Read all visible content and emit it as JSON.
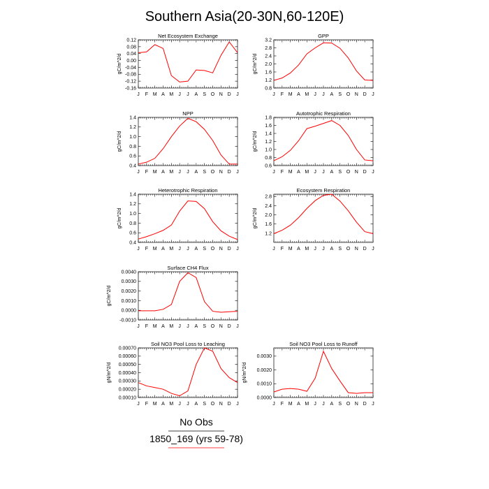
{
  "title": "Southern Asia(20-30N,60-120E)",
  "months": [
    "J",
    "F",
    "M",
    "A",
    "M",
    "J",
    "J",
    "A",
    "S",
    "O",
    "N",
    "D",
    "J"
  ],
  "legend": [
    {
      "name": "No Obs",
      "color": "#000000"
    },
    {
      "name": "1850_169 (yrs 59-78)",
      "color": "#ff0000"
    }
  ],
  "line_color": "#ff0000",
  "chart_data": [
    {
      "type": "line",
      "title": "Net Ecosystem Exchange",
      "ylabel": "gC/m^2/d",
      "ylim": [
        -0.16,
        0.12
      ],
      "yticks": [
        -0.16,
        -0.12,
        -0.08,
        -0.04,
        0.0,
        0.04,
        0.08,
        0.12
      ],
      "yticklabels": [
        "-0.16",
        "-0.12",
        "-0.08",
        "-0.04",
        "0.00",
        "0.04",
        "0.08",
        "0.12"
      ],
      "series": [
        {
          "values": [
            0.045,
            0.05,
            0.092,
            0.07,
            -0.088,
            -0.125,
            -0.12,
            -0.055,
            -0.058,
            -0.072,
            0.03,
            0.108,
            0.045
          ]
        }
      ]
    },
    {
      "type": "line",
      "title": "GPP",
      "ylabel": "gC/m^2/d",
      "ylim": [
        0.8,
        3.2
      ],
      "yticks": [
        0.8,
        1.2,
        1.6,
        2.0,
        2.4,
        2.8,
        3.2
      ],
      "yticklabels": [
        "0.8",
        "1.2",
        "1.6",
        "2.0",
        "2.4",
        "2.8",
        "3.2"
      ],
      "series": [
        {
          "values": [
            1.18,
            1.3,
            1.55,
            1.95,
            2.5,
            2.8,
            3.05,
            3.04,
            2.78,
            2.3,
            1.65,
            1.2,
            1.18
          ]
        }
      ]
    },
    {
      "type": "line",
      "title": "NPP",
      "ylabel": "gC/m^2/d",
      "ylim": [
        0.4,
        1.4
      ],
      "yticks": [
        0.4,
        0.6,
        0.8,
        1.0,
        1.2,
        1.4
      ],
      "yticklabels": [
        "0.4",
        "0.6",
        "0.8",
        "1.0",
        "1.2",
        "1.4"
      ],
      "series": [
        {
          "values": [
            0.43,
            0.47,
            0.55,
            0.75,
            1.0,
            1.22,
            1.38,
            1.31,
            1.15,
            0.92,
            0.62,
            0.43,
            0.43
          ]
        }
      ]
    },
    {
      "type": "line",
      "title": "Autotrophic Respiration",
      "ylabel": "gC/m^2/d",
      "ylim": [
        0.6,
        1.8
      ],
      "yticks": [
        0.6,
        0.8,
        1.0,
        1.2,
        1.4,
        1.6,
        1.8
      ],
      "yticklabels": [
        "0.6",
        "0.8",
        "1.0",
        "1.2",
        "1.4",
        "1.6",
        "1.8"
      ],
      "series": [
        {
          "values": [
            0.72,
            0.82,
            0.98,
            1.22,
            1.52,
            1.58,
            1.65,
            1.72,
            1.6,
            1.35,
            1.0,
            0.74,
            0.72
          ]
        }
      ]
    },
    {
      "type": "line",
      "title": "Heterotrophic Respiration",
      "ylabel": "gC/m^2/d",
      "ylim": [
        0.4,
        1.4
      ],
      "yticks": [
        0.4,
        0.6,
        0.8,
        1.0,
        1.2,
        1.4
      ],
      "yticklabels": [
        "0.4",
        "0.6",
        "0.8",
        "1.0",
        "1.2",
        "1.4"
      ],
      "series": [
        {
          "values": [
            0.47,
            0.52,
            0.58,
            0.65,
            0.76,
            1.05,
            1.26,
            1.25,
            1.1,
            0.83,
            0.64,
            0.53,
            0.46
          ]
        }
      ]
    },
    {
      "type": "line",
      "title": "Ecosystem Respiration",
      "ylabel": "gC/m^2/d",
      "ylim": [
        0.8,
        2.9
      ],
      "yticks": [
        1.2,
        1.6,
        2.0,
        2.4,
        2.8
      ],
      "yticklabels": [
        "1.2",
        "1.6",
        "2.0",
        "2.4",
        "2.8"
      ],
      "series": [
        {
          "values": [
            1.18,
            1.33,
            1.55,
            1.88,
            2.28,
            2.62,
            2.85,
            2.9,
            2.6,
            2.18,
            1.68,
            1.27,
            1.18
          ]
        }
      ]
    },
    {
      "type": "line",
      "title": "Surface CH4 Flux",
      "ylabel": "gC/m^2/d",
      "ylim": [
        -0.001,
        0.004
      ],
      "yticks": [
        -0.001,
        0.0,
        0.001,
        0.002,
        0.003,
        0.004
      ],
      "yticklabels": [
        "-0.0010",
        "0.0000",
        "0.0010",
        "0.0020",
        "0.0030",
        "0.0040"
      ],
      "series": [
        {
          "values": [
            -5e-05,
            -5e-05,
            -5e-05,
            0.0001,
            0.0006,
            0.003,
            0.0039,
            0.0034,
            0.0009,
            -0.0001,
            -0.0002,
            -0.00015,
            -0.0001
          ]
        }
      ]
    },
    {
      "type": "line",
      "title": "Soil NO3 Pool Loss to Leaching",
      "ylabel": "gN/m^2/d",
      "ylim": [
        0.0001,
        0.0007
      ],
      "yticks": [
        0.0001,
        0.0002,
        0.0003,
        0.0004,
        0.0005,
        0.0006,
        0.0007
      ],
      "yticklabels": [
        "0.00010",
        "0.00020",
        "0.00030",
        "0.00040",
        "0.00050",
        "0.00060",
        "0.00070"
      ],
      "series": [
        {
          "values": [
            0.00028,
            0.00024,
            0.00022,
            0.0002,
            0.00015,
            0.00012,
            0.00018,
            0.0005,
            0.0007,
            0.00066,
            0.00045,
            0.00034,
            0.00028
          ]
        }
      ]
    },
    {
      "type": "line",
      "title": "Soil NO3 Pool Loss to Runoff",
      "ylabel": "gN/m^2/d",
      "ylim": [
        0.0,
        0.0036
      ],
      "yticks": [
        0.0,
        0.001,
        0.002,
        0.003
      ],
      "yticklabels": [
        "0.0000",
        "0.0010",
        "0.0020",
        "0.0030"
      ],
      "series": [
        {
          "values": [
            0.0004,
            0.0006,
            0.00065,
            0.0006,
            0.00045,
            0.0014,
            0.00335,
            0.0021,
            0.0012,
            0.00035,
            0.0003,
            0.00035,
            0.00035
          ]
        }
      ]
    }
  ]
}
